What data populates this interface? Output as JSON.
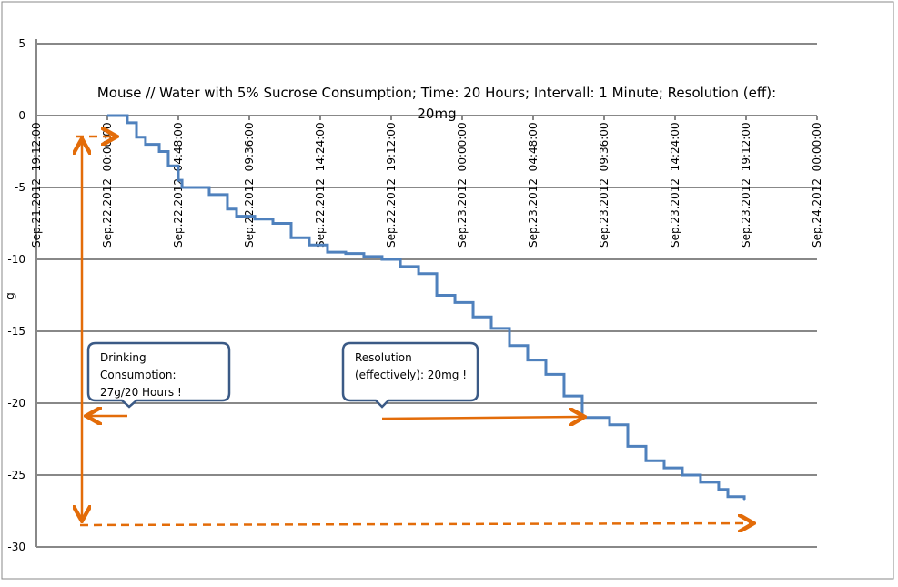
{
  "chart_data": {
    "type": "line",
    "title": "Mouse // Water with 5% Sucrose Consumption; Time: 20 Hours; Intervall: 1 Minute; Resolution (eff): 20mg",
    "title_lines": [
      "Mouse // Water with 5% Sucrose Consumption; Time: 20 Hours; Intervall: 1 Minute; Resolution (eff):",
      "20mg"
    ],
    "xlabel": "",
    "ylabel": "g",
    "ylim": [
      -30,
      5
    ],
    "yticks": [
      5,
      0,
      -5,
      -10,
      -15,
      -20,
      -25,
      -30
    ],
    "xlim_hours_from_first_tick": [
      0,
      52.8
    ],
    "xtick_labels": [
      "Sep.21.2012  19:12:00",
      "Sep.22.2012  00:00:00",
      "Sep.22.2012  04:48:00",
      "Sep.22.2012  09:36:00",
      "Sep.22.2012  14:24:00",
      "Sep.22.2012  19:12:00",
      "Sep.23.2012  00:00:00",
      "Sep.23.2012  04:48:00",
      "Sep.23.2012  09:36:00",
      "Sep.23.2012  14:24:00",
      "Sep.23.2012  19:12:00",
      "Sep.24.2012  00:00:00"
    ],
    "grid": "horizontal",
    "series": [
      {
        "name": "Consumption",
        "color": "#4f81bd",
        "x_hours_since_sep22_0000": [
          0,
          0.74,
          1.35,
          1.97,
          2.58,
          3.51,
          4.12,
          4.8,
          5.05,
          5.97,
          6.89,
          8.12,
          8.74,
          9.6,
          9.97,
          11.2,
          12.43,
          13.66,
          14.4,
          14.89,
          16.12,
          17.35,
          18.58,
          19.82,
          21.05,
          22.28,
          23.51,
          24.74,
          25.97,
          27.2,
          28.43,
          29.66,
          30.89,
          32.12,
          33.35,
          33.97,
          35.2,
          36.43,
          37.66,
          38.89,
          40.12,
          41.35,
          41.97,
          43.08
        ],
        "y": [
          0,
          0,
          -0.5,
          -1.5,
          -2,
          -2.5,
          -3.5,
          -4.5,
          -5,
          -5,
          -5.5,
          -6.5,
          -7,
          -7,
          -7.2,
          -7.5,
          -8.5,
          -9,
          -9,
          -9.5,
          -9.6,
          -9.8,
          -10,
          -10.5,
          -11,
          -12.5,
          -13,
          -14,
          -14.8,
          -16,
          -17,
          -18,
          -19.5,
          -21,
          -21,
          -21.5,
          -23,
          -24,
          -24.5,
          -25,
          -25.5,
          -26,
          -26.5,
          -26.7
        ]
      }
    ],
    "annotations": [
      {
        "text": "Drinking Consumption: 27g/20 Hours !",
        "lines": [
          "Drinking",
          "Consumption:",
          "27g/20 Hours !"
        ]
      },
      {
        "text": "Resolution (effectively): 20mg !",
        "lines": [
          "Resolution",
          "(effectively): 20mg !"
        ]
      }
    ],
    "annotation_color": "#e36c09"
  }
}
